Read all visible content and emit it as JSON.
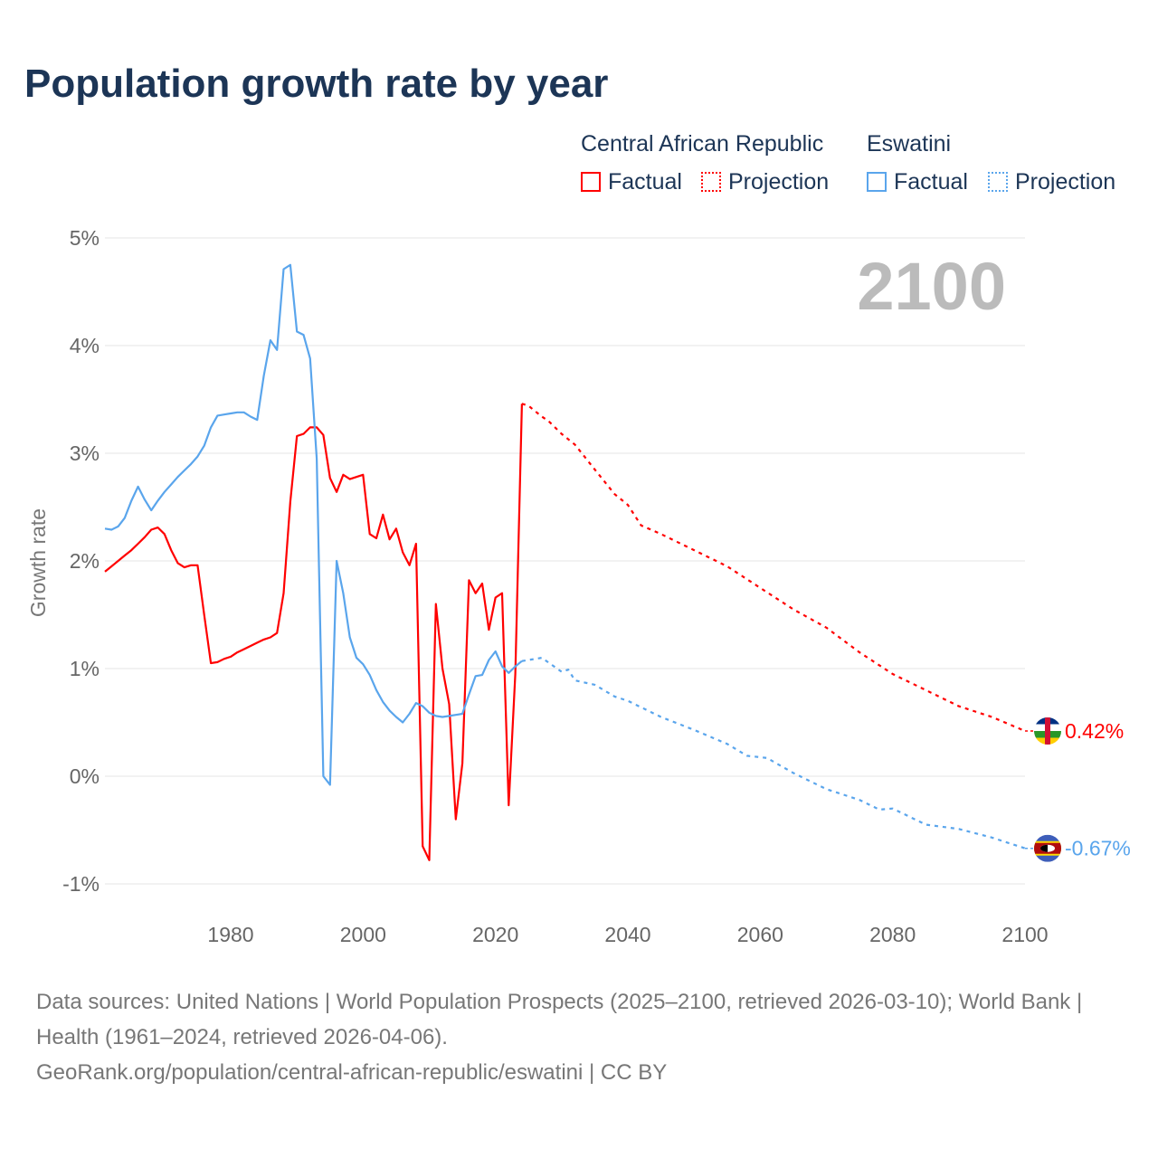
{
  "title": "Population growth rate by year",
  "legend": {
    "groups": [
      {
        "name": "Central African Republic",
        "color": "#ff0000",
        "factual": "Factual",
        "projection": "Projection"
      },
      {
        "name": "Eswatini",
        "color": "#5aa5ec",
        "factual": "Factual",
        "projection": "Projection"
      }
    ]
  },
  "year_label": "2100",
  "footer": {
    "sources": "Data sources: United Nations | World Population Prospects (2025–2100, retrieved 2026-03-10); World Bank | Health (1961–2024, retrieved 2026-04-06).",
    "url": "GeoRank.org/population/central-african-republic/eswatini | CC BY"
  },
  "chart_data": {
    "type": "line",
    "title": "Population growth rate by year",
    "ylabel": "Growth rate",
    "xlabel": "",
    "xlim": [
      1961,
      2100
    ],
    "ylim": [
      -1,
      5
    ],
    "x_ticks": [
      1980,
      2000,
      2020,
      2040,
      2060,
      2080,
      2100
    ],
    "y_ticks": [
      {
        "v": 5,
        "label": "5%"
      },
      {
        "v": 4,
        "label": "4%"
      },
      {
        "v": 3,
        "label": "3%"
      },
      {
        "v": 2,
        "label": "2%"
      },
      {
        "v": 1,
        "label": "1%"
      },
      {
        "v": 0,
        "label": "0%"
      },
      {
        "v": -1,
        "label": "-1%"
      }
    ],
    "grid": true,
    "series": [
      {
        "name": "Central African Republic",
        "kind": "Factual",
        "color": "#ff0000",
        "dashed": false,
        "x": [
          1961,
          1962,
          1963,
          1964,
          1965,
          1966,
          1967,
          1968,
          1969,
          1970,
          1971,
          1972,
          1973,
          1974,
          1975,
          1976,
          1977,
          1978,
          1979,
          1980,
          1981,
          1982,
          1983,
          1984,
          1985,
          1986,
          1987,
          1988,
          1989,
          1990,
          1991,
          1992,
          1993,
          1994,
          1995,
          1996,
          1997,
          1998,
          1999,
          2000,
          2001,
          2002,
          2003,
          2004,
          2005,
          2006,
          2007,
          2008,
          2009,
          2010,
          2011,
          2012,
          2013,
          2014,
          2015,
          2016,
          2017,
          2018,
          2019,
          2020,
          2021,
          2022,
          2023,
          2024
        ],
        "y": [
          1.9,
          1.95,
          2.0,
          2.05,
          2.1,
          2.16,
          2.22,
          2.29,
          2.31,
          2.25,
          2.1,
          1.98,
          1.94,
          1.96,
          1.96,
          1.5,
          1.05,
          1.06,
          1.09,
          1.11,
          1.15,
          1.18,
          1.21,
          1.24,
          1.27,
          1.29,
          1.33,
          1.7,
          2.55,
          3.16,
          3.18,
          3.24,
          3.24,
          3.17,
          2.77,
          2.64,
          2.8,
          2.76,
          2.78,
          2.8,
          2.25,
          2.21,
          2.43,
          2.2,
          2.3,
          2.08,
          1.96,
          2.16,
          -0.65,
          -0.78,
          1.6,
          1.0,
          0.67,
          -0.4,
          0.12,
          1.82,
          1.7,
          1.79,
          1.36,
          1.66,
          1.7,
          -0.27,
          0.95,
          3.46
        ]
      },
      {
        "name": "Central African Republic",
        "kind": "Projection",
        "color": "#ff0000",
        "dashed": true,
        "x": [
          2024,
          2025,
          2027,
          2028,
          2030,
          2032,
          2035,
          2038,
          2040,
          2042,
          2045,
          2050,
          2055,
          2060,
          2065,
          2070,
          2075,
          2080,
          2085,
          2090,
          2095,
          2100
        ],
        "y": [
          3.46,
          3.44,
          3.34,
          3.3,
          3.18,
          3.08,
          2.85,
          2.62,
          2.52,
          2.33,
          2.25,
          2.1,
          1.95,
          1.75,
          1.55,
          1.38,
          1.15,
          0.95,
          0.8,
          0.65,
          0.55,
          0.42
        ]
      },
      {
        "name": "Eswatini",
        "kind": "Factual",
        "color": "#5aa5ec",
        "dashed": false,
        "x": [
          1961,
          1962,
          1963,
          1964,
          1965,
          1966,
          1967,
          1968,
          1969,
          1970,
          1971,
          1972,
          1973,
          1974,
          1975,
          1976,
          1977,
          1978,
          1979,
          1980,
          1981,
          1982,
          1983,
          1984,
          1985,
          1986,
          1987,
          1988,
          1989,
          1990,
          1991,
          1992,
          1993,
          1994,
          1995,
          1996,
          1997,
          1998,
          1999,
          2000,
          2001,
          2002,
          2003,
          2004,
          2005,
          2006,
          2007,
          2008,
          2009,
          2010,
          2011,
          2012,
          2013,
          2014,
          2015,
          2016,
          2017,
          2018,
          2019,
          2020,
          2021,
          2022,
          2023,
          2024
        ],
        "y": [
          2.3,
          2.29,
          2.32,
          2.4,
          2.56,
          2.69,
          2.57,
          2.47,
          2.56,
          2.64,
          2.71,
          2.78,
          2.84,
          2.9,
          2.97,
          3.07,
          3.24,
          3.35,
          3.36,
          3.37,
          3.38,
          3.38,
          3.34,
          3.31,
          3.72,
          4.05,
          3.96,
          4.71,
          4.75,
          4.13,
          4.1,
          3.88,
          2.95,
          0.0,
          -0.08,
          2.0,
          1.7,
          1.29,
          1.1,
          1.04,
          0.94,
          0.8,
          0.69,
          0.61,
          0.55,
          0.5,
          0.58,
          0.68,
          0.65,
          0.59,
          0.56,
          0.55,
          0.56,
          0.57,
          0.58,
          0.76,
          0.93,
          0.94,
          1.08,
          1.16,
          1.02,
          0.96,
          1.02,
          1.07
        ]
      },
      {
        "name": "Eswatini",
        "kind": "Projection",
        "color": "#5aa5ec",
        "dashed": true,
        "x": [
          2024,
          2025,
          2027,
          2030,
          2031,
          2032,
          2035,
          2038,
          2040,
          2042,
          2045,
          2050,
          2055,
          2058,
          2061,
          2065,
          2070,
          2075,
          2078,
          2080,
          2085,
          2090,
          2095,
          2100
        ],
        "y": [
          1.07,
          1.08,
          1.1,
          0.97,
          0.99,
          0.89,
          0.85,
          0.74,
          0.7,
          0.64,
          0.55,
          0.43,
          0.3,
          0.19,
          0.17,
          0.03,
          -0.12,
          -0.22,
          -0.31,
          -0.3,
          -0.45,
          -0.49,
          -0.57,
          -0.67
        ]
      }
    ],
    "end_labels": [
      {
        "series": "Central African Republic",
        "value": 0.42,
        "label": "0.42%",
        "color": "#ff0000"
      },
      {
        "series": "Eswatini",
        "value": -0.67,
        "label": "-0.67%",
        "color": "#5aa5ec"
      }
    ]
  }
}
